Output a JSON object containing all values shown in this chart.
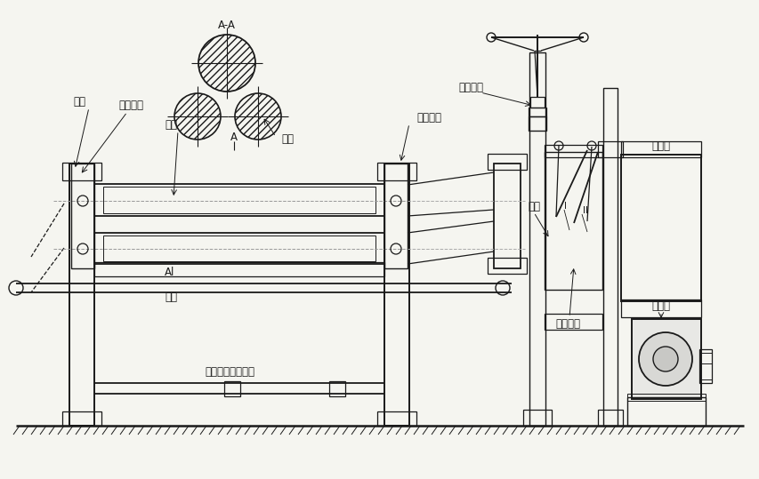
{
  "bg": "#f5f5f0",
  "lc": "#1a1a1a",
  "labels": {
    "AA": "A-A",
    "chaxiao": "插销",
    "huodong": "活动轴承",
    "shanghui": "上辊",
    "A_mark": "A",
    "cehui": "侧辊",
    "guding": "固定轴承",
    "xieban": "卸板装置",
    "chilun": "齿轮",
    "I": "I",
    "II": "II",
    "jiansuj": "减速器",
    "diandong": "电动机",
    "Al": "Al",
    "lagan": "拉杆",
    "screw": "上辊压紧传动螺杆",
    "caozong": "操纵手柄"
  },
  "fs": 8.5
}
